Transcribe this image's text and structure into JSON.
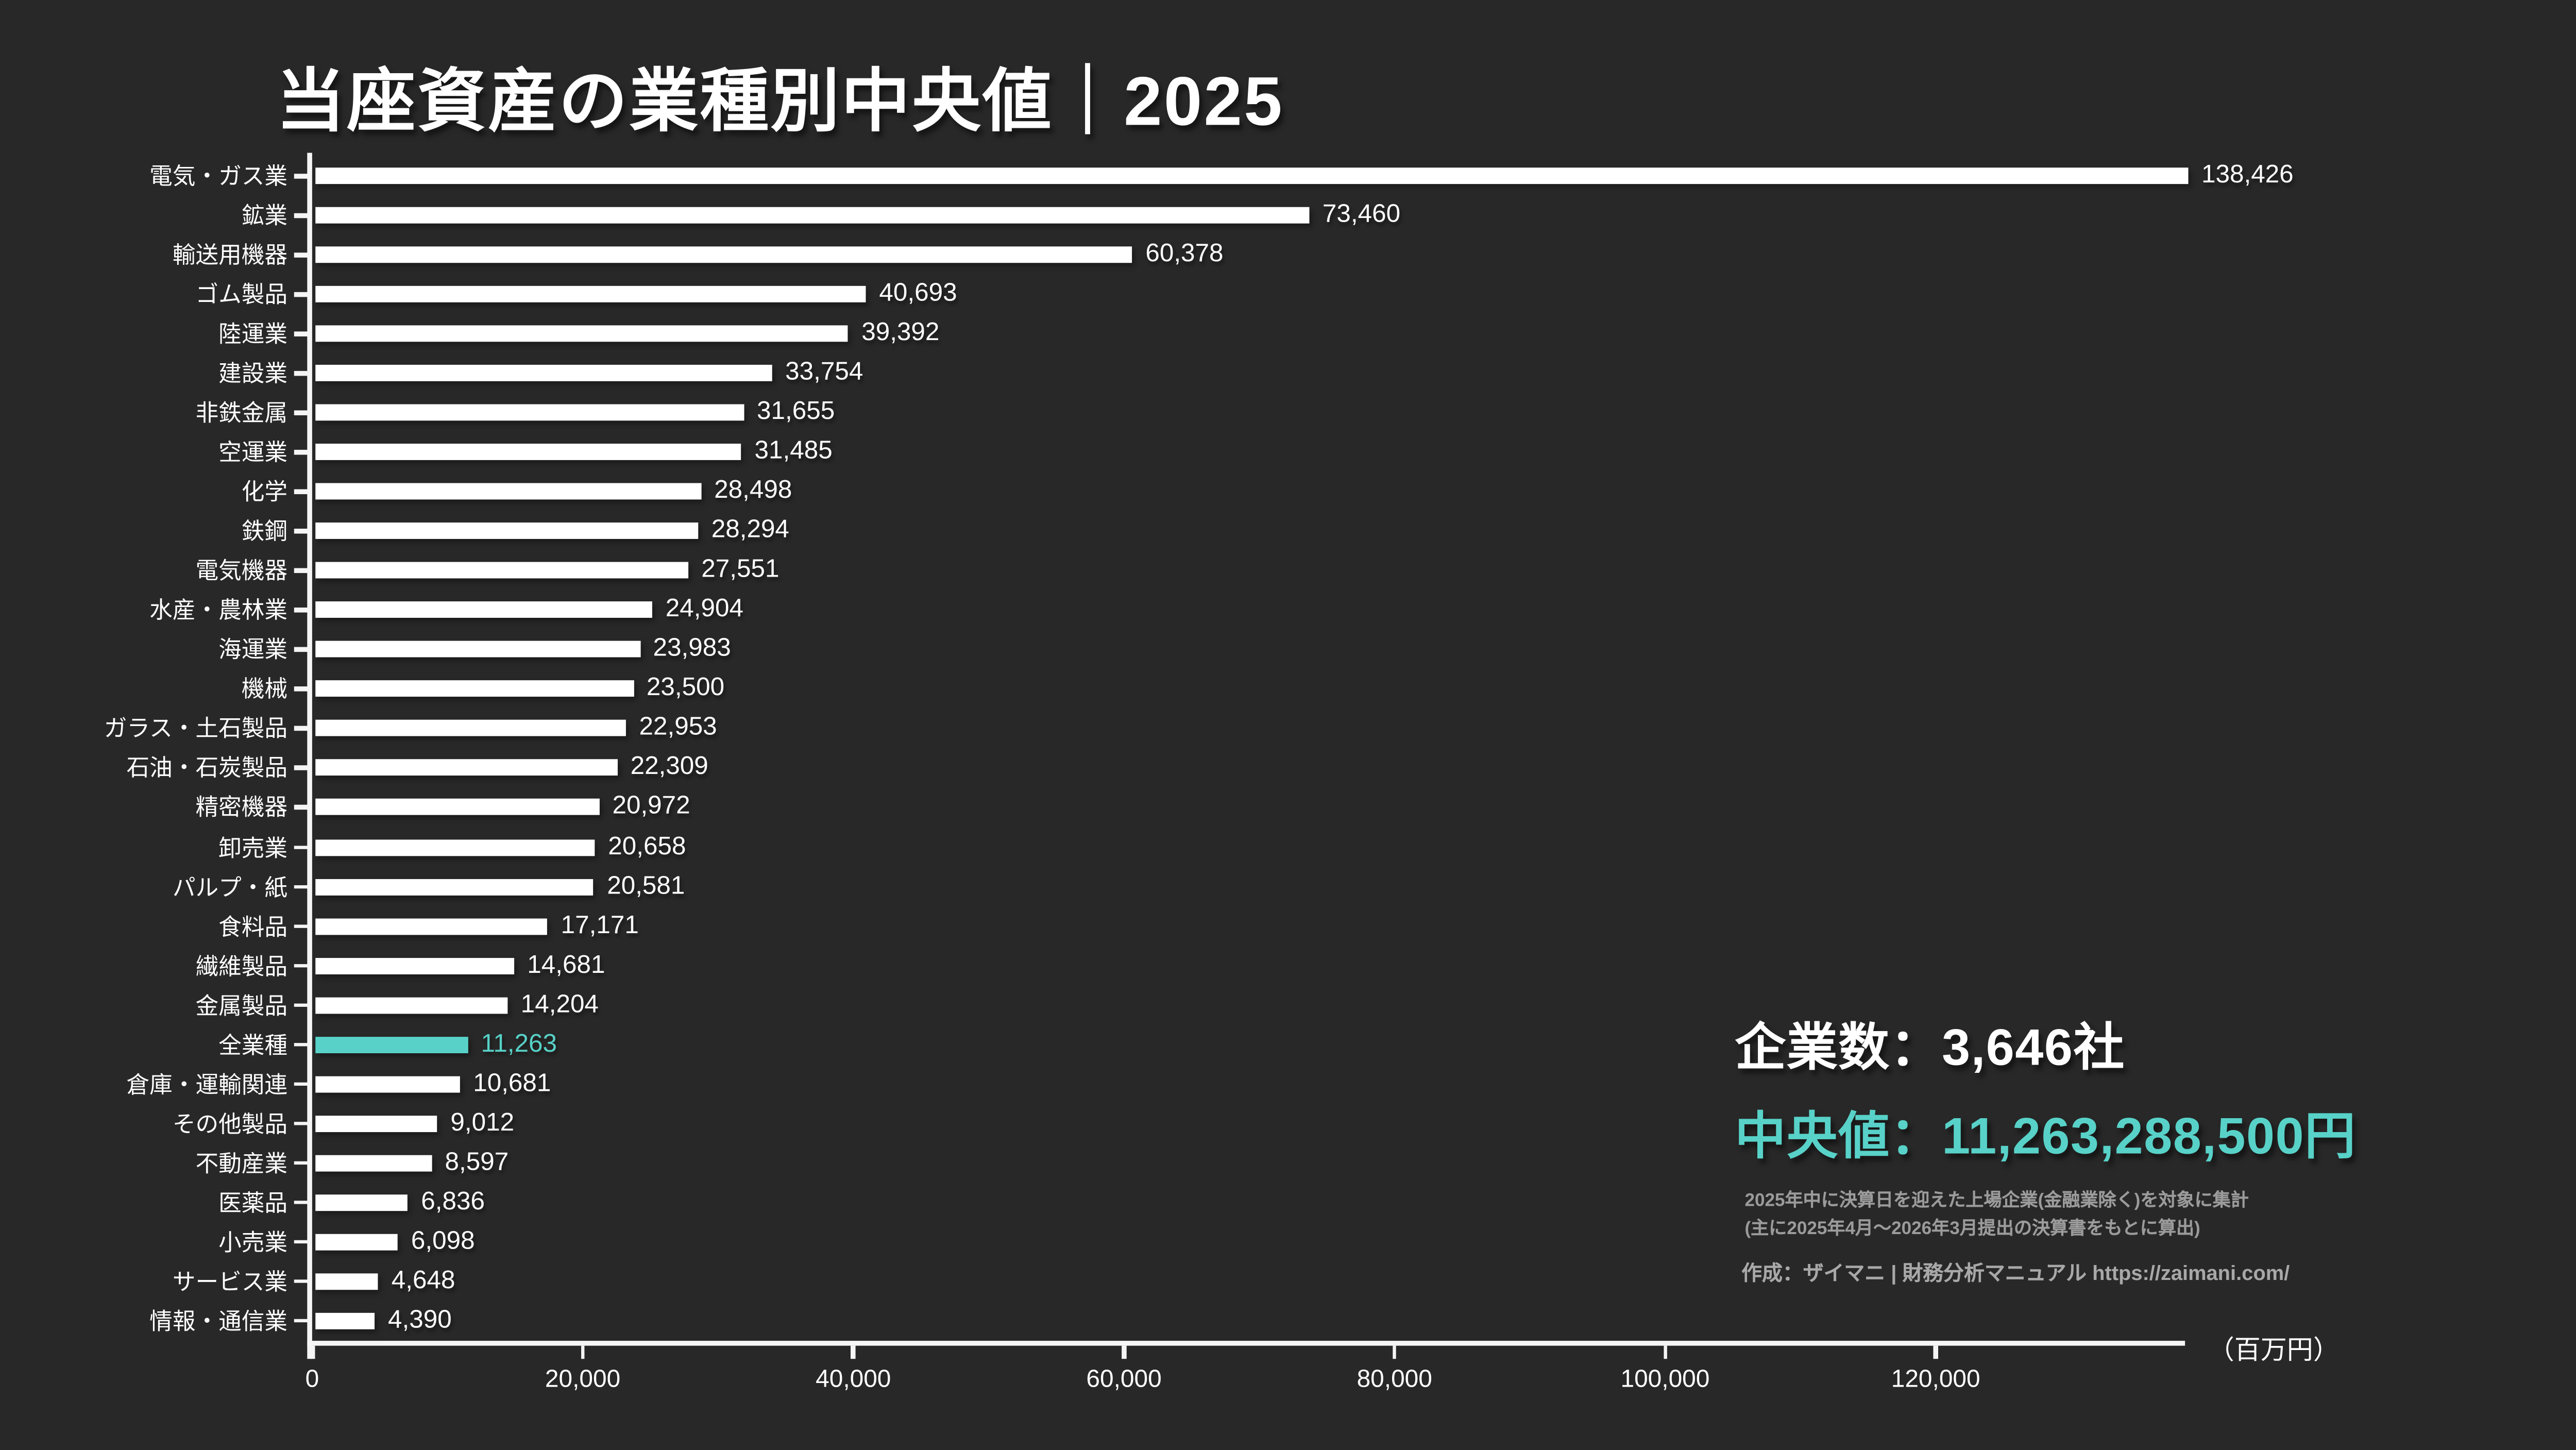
{
  "title": "当座資産の業種別中央値｜2025",
  "chart_data": {
    "type": "bar",
    "orientation": "horizontal",
    "title": "当座資産の業種別中央値｜2025",
    "unit_label": "（百万円）",
    "xlim": [
      0,
      138426
    ],
    "grid": false,
    "legend": null,
    "categories": [
      "電気・ガス業",
      "鉱業",
      "輸送用機器",
      "ゴム製品",
      "陸運業",
      "建設業",
      "非鉄金属",
      "空運業",
      "化学",
      "鉄鋼",
      "電気機器",
      "水産・農林業",
      "海運業",
      "機械",
      "ガラス・土石製品",
      "石油・石炭製品",
      "精密機器",
      "卸売業",
      "パルプ・紙",
      "食料品",
      "繊維製品",
      "金属製品",
      "全業種",
      "倉庫・運輸関連",
      "その他製品",
      "不動産業",
      "医薬品",
      "小売業",
      "サービス業",
      "情報・通信業"
    ],
    "values": [
      138426,
      73460,
      60378,
      40693,
      39392,
      33754,
      31655,
      31485,
      28498,
      28294,
      27551,
      24904,
      23983,
      23500,
      22953,
      22309,
      20972,
      20658,
      20581,
      17171,
      14681,
      14204,
      11263,
      10681,
      9012,
      8597,
      6836,
      6098,
      4648,
      4390
    ],
    "value_labels": [
      "138,426",
      "73,460",
      "60,378",
      "40,693",
      "39,392",
      "33,754",
      "31,655",
      "31,485",
      "28,498",
      "28,294",
      "27,551",
      "24,904",
      "23,983",
      "23,500",
      "22,953",
      "22,309",
      "20,972",
      "20,658",
      "20,581",
      "17,171",
      "14,681",
      "14,204",
      "11,263",
      "10,681",
      "9,012",
      "8,597",
      "6,836",
      "6,098",
      "4,648",
      "4,390"
    ],
    "highlight_index": 22,
    "highlight_category": "全業種",
    "x_ticks": [
      {
        "value": 0,
        "label": "0"
      },
      {
        "value": 20000,
        "label": "20,000"
      },
      {
        "value": 40000,
        "label": "40,000"
      },
      {
        "value": 60000,
        "label": "60,000"
      },
      {
        "value": 80000,
        "label": "80,000"
      },
      {
        "value": 100000,
        "label": "100,000"
      },
      {
        "value": 120000,
        "label": "120,000"
      }
    ],
    "colors": {
      "background": "#282828",
      "bar": "#ffffff",
      "highlight": "#58d2c8",
      "axis": "#f5f5f5",
      "muted_text": "#9b9b9b"
    }
  },
  "stats": {
    "companies_label": "企業数：3,646社",
    "median_label": "中央値：11,263,288,500円"
  },
  "footnotes": {
    "line1": "2025年中に決算日を迎えた上場企業(金融業除く)を対象に集計",
    "line2": "(主に2025年4月〜2026年3月提出の決算書をもとに算出)",
    "credit": "作成：ザイマニ | 財務分析マニュアル https://zaimani.com/"
  }
}
